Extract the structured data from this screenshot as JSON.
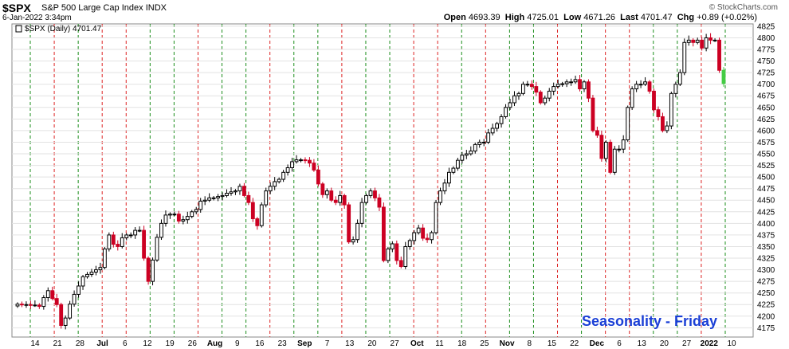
{
  "header": {
    "symbol": "$SPX",
    "description": "S&P 500 Large Cap Index",
    "exchange": "INDX",
    "datetime": "6-Jan-2022 3:34pm",
    "brand": "© StockCharts.com",
    "open_label": "Open",
    "open": "4693.39",
    "high_label": "High",
    "high": "4725.01",
    "low_label": "Low",
    "low": "4671.26",
    "last_label": "Last",
    "last": "4701.47",
    "chg_label": "Chg",
    "chg": "+0.89 (+0.02%)"
  },
  "legend": "$SPX (Daily) 4701.47",
  "watermark": "Seasonality - Friday",
  "colors": {
    "up": "#000000",
    "down": "#cc0022",
    "green_line": "#1a8c1a",
    "red_line": "#dd2222",
    "accent": "#1a3fd6",
    "last_candle": "#44cc44"
  },
  "chart_data": {
    "type": "candlestick",
    "ylim": [
      4155,
      4830
    ],
    "y_ticks": [
      4175,
      4200,
      4225,
      4250,
      4275,
      4300,
      4325,
      4350,
      4375,
      4400,
      4425,
      4450,
      4475,
      4500,
      4525,
      4550,
      4575,
      4600,
      4625,
      4650,
      4675,
      4700,
      4725,
      4750,
      4775,
      4800,
      4825
    ],
    "x_tick_labels": [
      "14",
      "21",
      "28",
      "Jul",
      "6",
      "12",
      "19",
      "26",
      "Aug",
      "9",
      "16",
      "23",
      "Sep",
      "7",
      "13",
      "20",
      "27",
      "Oct",
      "11",
      "18",
      "25",
      "Nov",
      "8",
      "15",
      "22",
      "Dec",
      "6",
      "13",
      "20",
      "27",
      "2022",
      "10"
    ],
    "closes": [
      4226,
      4225,
      4225,
      4224,
      4224,
      4221,
      4240,
      4255,
      4238,
      4225,
      4180,
      4196,
      4226,
      4247,
      4265,
      4285,
      4290,
      4295,
      4300,
      4305,
      4345,
      4375,
      4355,
      4350,
      4369,
      4375,
      4375,
      4385,
      4385,
      4325,
      4275,
      4321,
      4370,
      4400,
      4418,
      4420,
      4420,
      4405,
      4408,
      4415,
      4425,
      4430,
      4448,
      4450,
      4455,
      4455,
      4458,
      4460,
      4465,
      4468,
      4470,
      4480,
      4460,
      4445,
      4410,
      4395,
      4440,
      4470,
      4480,
      4490,
      4495,
      4510,
      4520,
      4533,
      4537,
      4537,
      4536,
      4530,
      4515,
      4485,
      4462,
      4470,
      4450,
      4445,
      4460,
      4440,
      4360,
      4365,
      4400,
      4445,
      4460,
      4470,
      4455,
      4435,
      4320,
      4345,
      4356,
      4320,
      4307,
      4350,
      4363,
      4380,
      4390,
      4368,
      4365,
      4380,
      4445,
      4470,
      4487,
      4510,
      4519,
      4536,
      4547,
      4550,
      4556,
      4570,
      4575,
      4575,
      4595,
      4605,
      4615,
      4630,
      4650,
      4660,
      4675,
      4680,
      4700,
      4700,
      4695,
      4683,
      4660,
      4670,
      4685,
      4695,
      4700,
      4701,
      4705,
      4705,
      4710,
      4690,
      4705,
      4670,
      4600,
      4590,
      4540,
      4575,
      4510,
      4560,
      4560,
      4580,
      4650,
      4690,
      4700,
      4700,
      4705,
      4685,
      4645,
      4630,
      4600,
      4610,
      4680,
      4700,
      4725,
      4790,
      4795,
      4790,
      4795,
      4778,
      4800,
      4795,
      4795,
      4730,
      4701.47
    ]
  }
}
